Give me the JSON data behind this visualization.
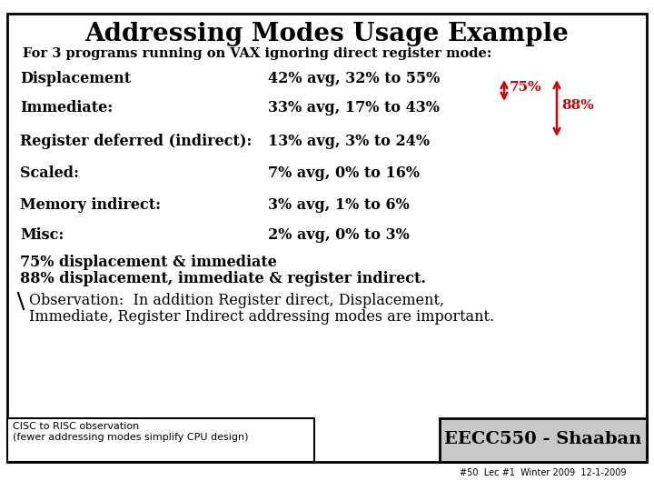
{
  "title": "Addressing Modes Usage Example",
  "subtitle": "For 3 programs running on VAX ignoring direct register mode:",
  "rows": [
    {
      "label": "Displacement",
      "value": "42% avg, 32% to 55%"
    },
    {
      "label": "Immediate:",
      "value": "33% avg, 17% to 43%"
    },
    {
      "label": "Register deferred (indirect):",
      "value": "13% avg, 3% to 24%"
    },
    {
      "label": "Scaled:",
      "value": "7% avg, 0% to 16%"
    },
    {
      "label": "Memory indirect:",
      "value": "3% avg, 1% to 6%"
    },
    {
      "label": "Misc:",
      "value": "2% avg, 0% to 3%"
    }
  ],
  "arrow75_label": "75%",
  "arrow88_label": "88%",
  "summary_line1": "75% displacement & immediate",
  "summary_line2": "88% displacement, immediate & register indirect.",
  "observation_line1": "Observation:  In addition Register direct, Displacement,",
  "observation_line2": "Immediate, Register Indirect addressing modes are important.",
  "bottom_left": "CISC to RISC observation\n(fewer addressing modes simplify CPU design)",
  "bottom_right": "EECC550 - Shaaban",
  "bottom_footer": "#50  Lec #1  Winter 2009  12-1-2009",
  "bg_color": "#ffffff",
  "border_color": "#000000",
  "text_color": "#000000",
  "arrow_color": "#cc0000",
  "br_bg_color": "#c8c8c8"
}
